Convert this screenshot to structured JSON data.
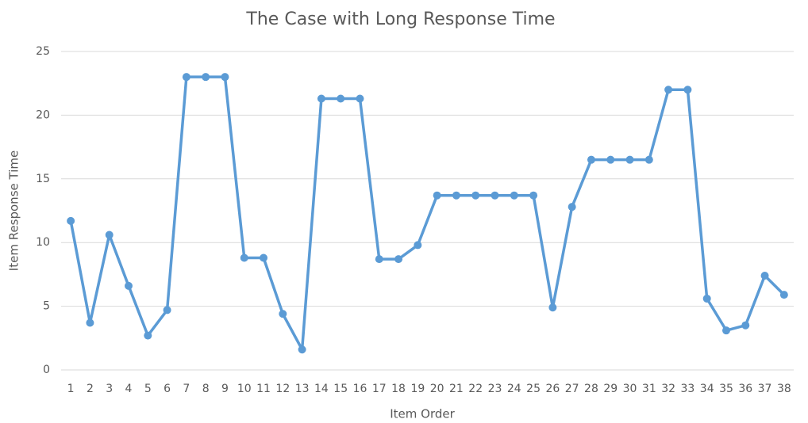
{
  "chart_data": {
    "type": "line",
    "title": "The Case with Long Response Time",
    "x_label": "Item Order",
    "y_label": "Item Response Time",
    "categories": [
      "1",
      "2",
      "3",
      "4",
      "5",
      "6",
      "7",
      "8",
      "9",
      "10",
      "11",
      "12",
      "13",
      "14",
      "15",
      "16",
      "17",
      "18",
      "19",
      "20",
      "21",
      "22",
      "23",
      "24",
      "25",
      "26",
      "27",
      "28",
      "29",
      "30",
      "31",
      "32",
      "33",
      "34",
      "35",
      "36",
      "37",
      "38"
    ],
    "series": [
      {
        "name": "Item Response Time",
        "color": "#5b9bd5",
        "values": [
          11.7,
          3.7,
          10.6,
          6.6,
          2.7,
          4.7,
          23.0,
          23.0,
          23.0,
          8.8,
          8.8,
          4.4,
          1.6,
          21.3,
          21.3,
          21.3,
          8.7,
          8.7,
          9.8,
          13.7,
          13.7,
          13.7,
          13.7,
          13.7,
          13.7,
          4.9,
          12.8,
          16.5,
          16.5,
          16.5,
          16.5,
          22.0,
          22.0,
          5.6,
          3.1,
          3.5,
          7.4,
          5.9
        ]
      }
    ],
    "ylim": [
      0,
      25
    ],
    "yticks": [
      0,
      5,
      10,
      15,
      20,
      25
    ],
    "grid": true
  }
}
